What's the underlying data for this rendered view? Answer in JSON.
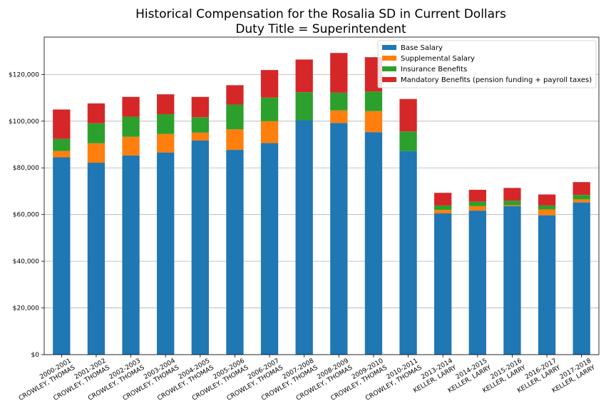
{
  "chart_data": {
    "type": "bar",
    "stacked": true,
    "title": "Historical Compensation for the Rosalia SD in Current Dollars",
    "subtitle": "Duty Title = Superintendent",
    "xlabel": "",
    "ylabel": "",
    "ylim": [
      0,
      136000
    ],
    "yticks": [
      0,
      20000,
      40000,
      60000,
      80000,
      100000,
      120000
    ],
    "ytick_labels": [
      "$0",
      "$20,000",
      "$40,000",
      "$60,000",
      "$80,000",
      "$100,000",
      "$120,000"
    ],
    "grid": "horizontal",
    "legend_position": "top-right",
    "categories": [
      [
        "2000-2001",
        "CROWLEY, THOMAS"
      ],
      [
        "2001-2002",
        "CROWLEY, THOMAS"
      ],
      [
        "2002-2003",
        "CROWLEY, THOMAS"
      ],
      [
        "2003-2004",
        "CROWLEY, THOMAS"
      ],
      [
        "2004-2005",
        "CROWLEY, THOMAS"
      ],
      [
        "2005-2006",
        "CROWLEY, THOMAS"
      ],
      [
        "2006-2007",
        "CROWLEY, THOMAS"
      ],
      [
        "2007-2008",
        "CROWLEY, THOMAS"
      ],
      [
        "2008-2009",
        "CROWLEY, THOMAS"
      ],
      [
        "2009-2010",
        "CROWLEY, THOMAS"
      ],
      [
        "2010-2011",
        "CROWLEY, THOMAS"
      ],
      [
        "2013-2014",
        "KELLER, LARRY"
      ],
      [
        "2014-2015",
        "KELLER, LARRY"
      ],
      [
        "2015-2016",
        "KELLER, LARRY"
      ],
      [
        "2016-2017",
        "KELLER, LARRY"
      ],
      [
        "2017-2018",
        "KELLER, LARRY"
      ]
    ],
    "series": [
      {
        "name": "Base Salary",
        "color": "#1f77b4",
        "values": [
          84500,
          82200,
          85300,
          86600,
          91700,
          87700,
          90600,
          100400,
          99200,
          95300,
          87200,
          60500,
          61700,
          63600,
          59700,
          65200
        ]
      },
      {
        "name": "Supplemental Salary",
        "color": "#ff7f0e",
        "values": [
          2700,
          8300,
          8000,
          7900,
          3400,
          8800,
          9400,
          0,
          5400,
          9000,
          0,
          1500,
          1900,
          400,
          2500,
          1300
        ]
      },
      {
        "name": "Insurance Benefits",
        "color": "#2ca02c",
        "values": [
          5200,
          8600,
          8600,
          8500,
          6600,
          10600,
          10100,
          12000,
          7600,
          8400,
          8400,
          1900,
          1900,
          1900,
          1700,
          1900
        ]
      },
      {
        "name": "Mandatory Benefits (pension funding + payroll taxes)",
        "color": "#d62728",
        "values": [
          12600,
          8500,
          8500,
          8500,
          8700,
          8300,
          11800,
          14000,
          17000,
          14700,
          13900,
          5400,
          5100,
          5500,
          4700,
          5500
        ]
      }
    ]
  }
}
